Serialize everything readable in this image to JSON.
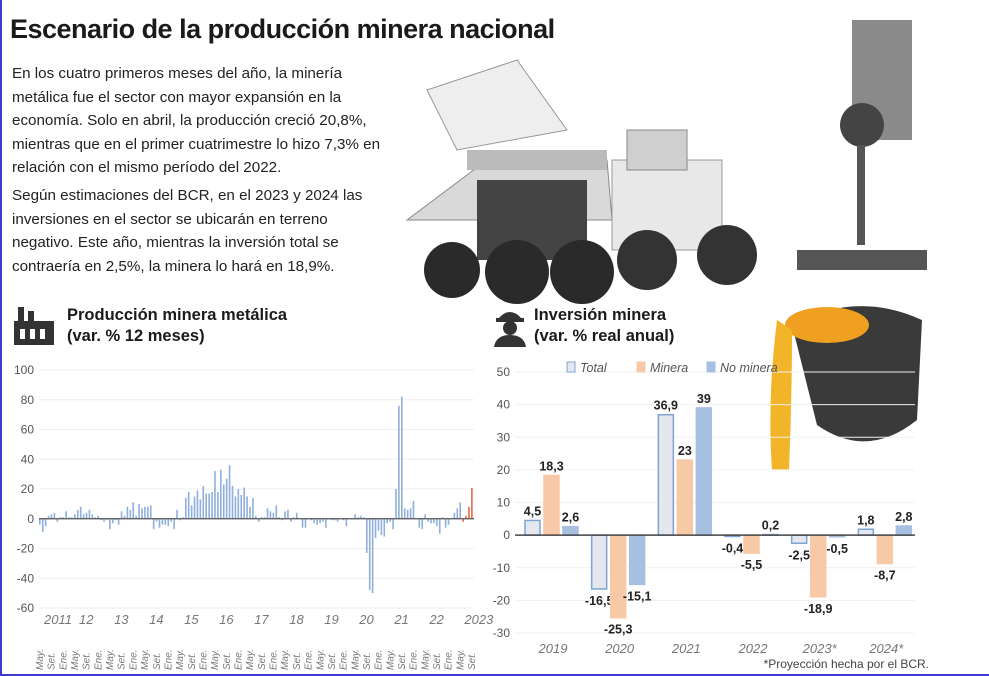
{
  "title": "Escenario de la producción minera nacional",
  "paragraphs": [
    "En los cuatro primeros meses del año, la minería metálica fue el sector con mayor expansión en la economía. Solo en abril, la producción creció 20,8%, mientras que en el primer cuatrimestre lo hizo 7,3% en relación con el mismo período del 2022.",
    "Según estimaciones del BCR, en el 2023 y 2024 las inversiones en el sector se ubicarán en terreno negativo. Este año, mientras la inversión total se contraería en 2,5%, la minera lo hará en 18,9%."
  ],
  "footnote": "*Proyección hecha por el BCR.",
  "chart_data": [
    {
      "type": "bar",
      "title": "Producción minera metálica",
      "subtitle": "(var. % 12 meses)",
      "icon": "factory-icon",
      "ylim": [
        -60,
        100
      ],
      "yticks": [
        100,
        80,
        60,
        40,
        20,
        0,
        -20,
        -40,
        -60
      ],
      "year_labels": [
        "2011",
        "12",
        "13",
        "14",
        "15",
        "16",
        "17",
        "18",
        "19",
        "20",
        "21",
        "22",
        "2023"
      ],
      "month_labels": [
        "May.",
        "Set.",
        "Ene."
      ],
      "colors": {
        "history": "#8fb0dc",
        "latest": "#e0694a"
      },
      "values": [
        -4,
        -9,
        -5,
        2,
        3,
        4,
        -2,
        1,
        1,
        5,
        1,
        1,
        3,
        6,
        8,
        3,
        4,
        6,
        3,
        1,
        2,
        -1,
        -2,
        -1,
        -7,
        -3,
        -1,
        -4,
        5,
        2,
        8,
        6,
        11,
        2,
        10,
        7,
        8,
        8,
        9,
        -7,
        -2,
        -6,
        -4,
        -4,
        -5,
        -2,
        -7,
        6,
        -1,
        1,
        14,
        18,
        9,
        15,
        19,
        13,
        22,
        17,
        17,
        18,
        32,
        18,
        33,
        23,
        27,
        36,
        22,
        15,
        20,
        16,
        21,
        15,
        8,
        14,
        2,
        -2,
        1,
        1,
        7,
        5,
        4,
        9,
        1,
        -1,
        5,
        6,
        -2,
        1,
        4,
        0,
        -6,
        -6,
        0,
        -1,
        -3,
        -4,
        -3,
        -2,
        -6,
        0,
        -1,
        -1,
        -2,
        0,
        -1,
        -5,
        0,
        0,
        3,
        1,
        2,
        1,
        -23,
        -48,
        -50,
        -13,
        -8,
        -11,
        -12,
        -3,
        -2,
        -7,
        20,
        76,
        82,
        7,
        6,
        7,
        12,
        0,
        -6,
        -7,
        3,
        -2,
        -3,
        -3,
        -5,
        -10,
        1,
        -6,
        -4,
        0,
        4,
        7,
        11,
        -2,
        2,
        8,
        20.8
      ],
      "highlight_last": 4
    },
    {
      "type": "bar",
      "title": "Inversión minera",
      "subtitle": "(var. % real anual)",
      "icon": "miner-icon",
      "ylim": [
        -30,
        50
      ],
      "yticks": [
        50,
        40,
        30,
        20,
        10,
        0,
        -10,
        -20,
        -30
      ],
      "categories": [
        "2019",
        "2020",
        "2021",
        "2022",
        "2023*",
        "2024*"
      ],
      "series": [
        {
          "name": "Total",
          "color": "#e4e8ee",
          "stroke": "#7fa3d3",
          "values": [
            4.5,
            -16.5,
            36.9,
            -0.4,
            -2.5,
            1.8
          ],
          "labels": [
            "4,5",
            "-16,5",
            "36,9",
            "-0,4",
            "-2,5",
            "1,8"
          ]
        },
        {
          "name": "Minera",
          "color": "#f7c9a6",
          "stroke": "#f7c9a6",
          "values": [
            18.3,
            -25.3,
            23,
            -5.5,
            -18.9,
            -8.7
          ],
          "labels": [
            "18,3",
            "-25,3",
            "23",
            "-5,5",
            "-18,9",
            "-8,7"
          ]
        },
        {
          "name": "No minera",
          "color": "#a7bfe0",
          "stroke": "#a7bfe0",
          "values": [
            2.6,
            -15.1,
            39,
            0.2,
            -0.5,
            2.8
          ],
          "labels": [
            "2,6",
            "-15,1",
            "39",
            "0,2",
            "-0,5",
            "2,8"
          ]
        }
      ]
    }
  ]
}
